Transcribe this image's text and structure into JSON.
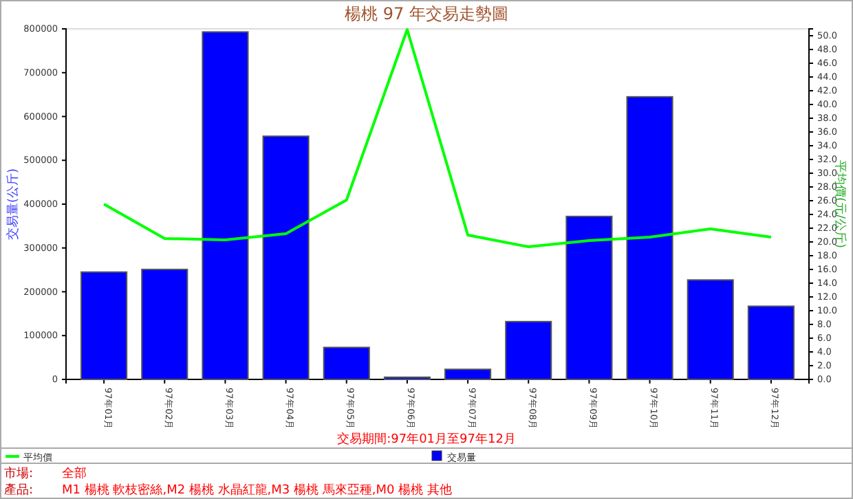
{
  "chart_data": {
    "type": "bar",
    "title": "楊桃 97 年交易走勢圖",
    "ylabel": "交易量(公斤)",
    "y2label": "平均價(元/公斤)",
    "categories": [
      "97年01月",
      "97年02月",
      "97年03月",
      "97年04月",
      "97年05月",
      "97年06月",
      "97年07月",
      "97年08月",
      "97年09月",
      "97年10月",
      "97年11月",
      "97年12月"
    ],
    "series": [
      {
        "name": "平均價",
        "type": "line",
        "axis": "y2",
        "color": "#00ff00",
        "values": [
          25.5,
          20.5,
          20.3,
          21.2,
          26.1,
          50.9,
          21.0,
          19.3,
          20.2,
          20.7,
          21.9,
          20.7
        ]
      },
      {
        "name": "交易量",
        "color": "#0000ff",
        "values": [
          245000,
          251000,
          793000,
          555000,
          73000,
          5000,
          23000,
          132000,
          372000,
          645000,
          227000,
          167000
        ]
      }
    ],
    "ylim": [
      0,
      800000
    ],
    "yticks": [
      0,
      100000,
      200000,
      300000,
      400000,
      500000,
      600000,
      700000,
      800000
    ],
    "y2lim": [
      0,
      51
    ],
    "y2ticks": [
      {
        "value": 0,
        "label": "0.0"
      },
      {
        "value": 2,
        "label": "2.0"
      },
      {
        "value": 4,
        "label": "4.0"
      },
      {
        "value": 6,
        "label": "6.0"
      },
      {
        "value": 8,
        "label": "8.0"
      },
      {
        "value": 10,
        "label": "10.0"
      },
      {
        "value": 12,
        "label": "12.0"
      },
      {
        "value": 14,
        "label": "14.0"
      },
      {
        "value": 16,
        "label": "16.0"
      },
      {
        "value": 18,
        "label": "18.0"
      },
      {
        "value": 20,
        "label": "20.0"
      },
      {
        "value": 22,
        "label": "22.0"
      },
      {
        "value": 24,
        "label": "24.0"
      },
      {
        "value": 26,
        "label": "26.0"
      },
      {
        "value": 28,
        "label": "28.0"
      },
      {
        "value": 30,
        "label": "30.0"
      },
      {
        "value": 32,
        "label": "32.0"
      },
      {
        "value": 34,
        "label": "34.0"
      },
      {
        "value": 36,
        "label": "36.0"
      },
      {
        "value": 38,
        "label": "38.0"
      },
      {
        "value": 40,
        "label": "40.0"
      },
      {
        "value": 42,
        "label": "42.0"
      },
      {
        "value": 44,
        "label": "44.0"
      },
      {
        "value": 46,
        "label": "46.0"
      },
      {
        "value": 48,
        "label": "48.0"
      },
      {
        "value": 50,
        "label": "50.0"
      }
    ],
    "legend": "bottom",
    "grid": false,
    "marker": "none",
    "annotations": [
      "交易期間:97年01月至97年12月",
      "市場:",
      "全部",
      "產品:",
      "M1 楊桃 軟枝密絲,M2 楊桃 水晶紅龍,M3 楊桃 馬來亞種,M0 楊桃 其他"
    ]
  }
}
